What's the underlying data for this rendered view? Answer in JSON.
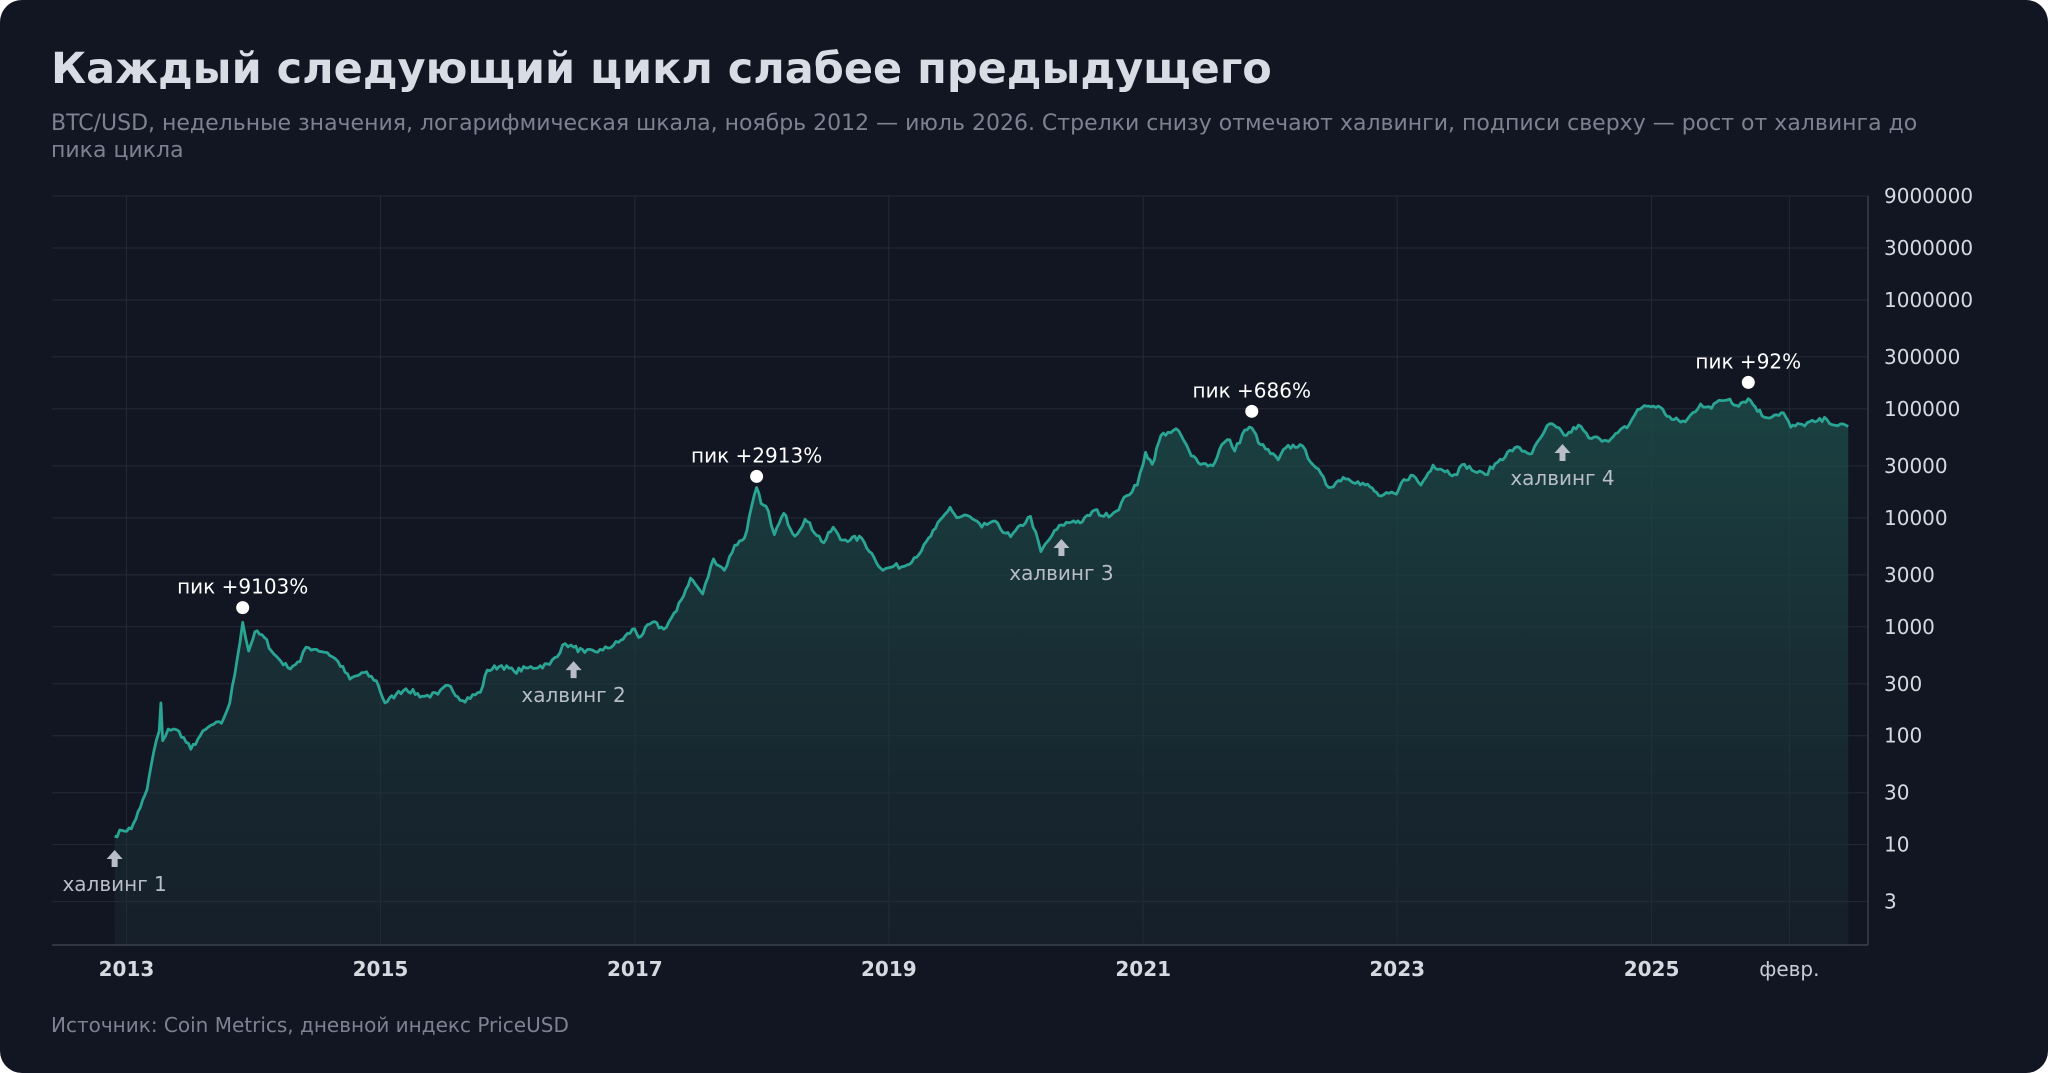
{
  "title": "Каждый следующий цикл слабее предыдущего",
  "subtitle": "BTC/USD, недельные значения, логарифмическая шкала, ноябрь 2012 — июль 2026. Стрелки снизу отмечают халвинги, подписи сверху — рост от халвинга до пика цикла",
  "source": "Источник: Coin Metrics, дневной индекс PriceUSD",
  "colors": {
    "background": "#121622",
    "line": "#2aa493",
    "area": "#1d4a47",
    "grid": "#232a37"
  },
  "chart_data": {
    "type": "area",
    "scale_y": "log",
    "ylim": [
      1.2,
      9000000
    ],
    "xlim": [
      "2012-06-01",
      "2026-09-15"
    ],
    "grid": true,
    "y_ticks": [
      3,
      10,
      30,
      100,
      300,
      1000,
      3000,
      10000,
      30000,
      100000,
      300000,
      1000000,
      3000000,
      9000000
    ],
    "y_tick_labels": [
      "3",
      "10",
      "30",
      "100",
      "300",
      "1000",
      "3000",
      "10000",
      "30000",
      "100000",
      "300000",
      "1000000",
      "3000000",
      "9000000"
    ],
    "x_ticks": [
      {
        "date": "2013-01-01",
        "label": "2013"
      },
      {
        "date": "2015-01-01",
        "label": "2015"
      },
      {
        "date": "2017-01-01",
        "label": "2017"
      },
      {
        "date": "2019-01-01",
        "label": "2019"
      },
      {
        "date": "2021-01-01",
        "label": "2021"
      },
      {
        "date": "2023-01-01",
        "label": "2023"
      },
      {
        "date": "2025-01-01",
        "label": "2025"
      },
      {
        "date": "2026-02-01",
        "label": "февр."
      }
    ],
    "series": [
      {
        "points": [
          [
            "2012-11-28",
            12
          ],
          [
            "2012-12-20",
            13.5
          ],
          [
            "2013-01-15",
            14
          ],
          [
            "2013-02-10",
            22
          ],
          [
            "2013-03-01",
            32
          ],
          [
            "2013-03-20",
            70
          ],
          [
            "2013-04-05",
            110
          ],
          [
            "2013-04-10",
            200
          ],
          [
            "2013-04-15",
            90
          ],
          [
            "2013-05-01",
            115
          ],
          [
            "2013-06-01",
            110
          ],
          [
            "2013-07-05",
            75
          ],
          [
            "2013-08-01",
            100
          ],
          [
            "2013-09-01",
            125
          ],
          [
            "2013-10-01",
            130
          ],
          [
            "2013-10-25",
            200
          ],
          [
            "2013-11-15",
            500
          ],
          [
            "2013-12-01",
            1100
          ],
          [
            "2013-12-18",
            600
          ],
          [
            "2014-01-05",
            900
          ],
          [
            "2014-02-01",
            800
          ],
          [
            "2014-03-01",
            560
          ],
          [
            "2014-04-10",
            420
          ],
          [
            "2014-05-15",
            480
          ],
          [
            "2014-06-01",
            650
          ],
          [
            "2014-07-01",
            620
          ],
          [
            "2014-08-01",
            580
          ],
          [
            "2014-09-01",
            480
          ],
          [
            "2014-10-05",
            330
          ],
          [
            "2014-11-15",
            380
          ],
          [
            "2014-12-20",
            320
          ],
          [
            "2015-01-14",
            200
          ],
          [
            "2015-02-15",
            240
          ],
          [
            "2015-03-15",
            270
          ],
          [
            "2015-05-01",
            230
          ],
          [
            "2015-06-15",
            240
          ],
          [
            "2015-07-15",
            290
          ],
          [
            "2015-08-25",
            210
          ],
          [
            "2015-10-15",
            250
          ],
          [
            "2015-11-04",
            400
          ],
          [
            "2015-12-15",
            440
          ],
          [
            "2016-01-20",
            390
          ],
          [
            "2016-03-01",
            420
          ],
          [
            "2016-05-01",
            450
          ],
          [
            "2016-06-15",
            700
          ],
          [
            "2016-07-09",
            650
          ],
          [
            "2016-08-10",
            580
          ],
          [
            "2016-10-01",
            610
          ],
          [
            "2016-11-15",
            720
          ],
          [
            "2016-12-31",
            960
          ],
          [
            "2017-01-12",
            800
          ],
          [
            "2017-02-20",
            1100
          ],
          [
            "2017-03-25",
            950
          ],
          [
            "2017-05-01",
            1400
          ],
          [
            "2017-06-10",
            2800
          ],
          [
            "2017-07-15",
            2000
          ],
          [
            "2017-08-15",
            4200
          ],
          [
            "2017-09-15",
            3300
          ],
          [
            "2017-10-15",
            5600
          ],
          [
            "2017-11-12",
            6500
          ],
          [
            "2017-12-17",
            19000
          ],
          [
            "2017-12-30",
            13500
          ],
          [
            "2018-01-20",
            11500
          ],
          [
            "2018-02-06",
            7000
          ],
          [
            "2018-03-05",
            11000
          ],
          [
            "2018-04-06",
            6800
          ],
          [
            "2018-05-05",
            9700
          ],
          [
            "2018-06-28",
            5900
          ],
          [
            "2018-07-25",
            8200
          ],
          [
            "2018-08-15",
            6300
          ],
          [
            "2018-10-15",
            6500
          ],
          [
            "2018-11-20",
            4300
          ],
          [
            "2018-12-15",
            3300
          ],
          [
            "2019-01-15",
            3600
          ],
          [
            "2019-02-15",
            3600
          ],
          [
            "2019-04-05",
            5000
          ],
          [
            "2019-05-15",
            8000
          ],
          [
            "2019-06-26",
            12500
          ],
          [
            "2019-07-15",
            10000
          ],
          [
            "2019-08-15",
            10500
          ],
          [
            "2019-09-25",
            8200
          ],
          [
            "2019-10-26",
            9300
          ],
          [
            "2019-12-17",
            6700
          ],
          [
            "2020-02-12",
            10300
          ],
          [
            "2020-03-13",
            4900
          ],
          [
            "2020-04-15",
            7000
          ],
          [
            "2020-05-11",
            8600
          ],
          [
            "2020-06-15",
            9400
          ],
          [
            "2020-07-10",
            9200
          ],
          [
            "2020-08-15",
            11800
          ],
          [
            "2020-09-10",
            10300
          ],
          [
            "2020-10-15",
            11500
          ],
          [
            "2020-11-15",
            16000
          ],
          [
            "2020-12-15",
            20000
          ],
          [
            "2021-01-08",
            40000
          ],
          [
            "2021-01-27",
            31000
          ],
          [
            "2021-02-21",
            57000
          ],
          [
            "2021-03-13",
            61000
          ],
          [
            "2021-04-13",
            63000
          ],
          [
            "2021-05-19",
            37000
          ],
          [
            "2021-06-22",
            31500
          ],
          [
            "2021-07-20",
            30000
          ],
          [
            "2021-08-15",
            47000
          ],
          [
            "2021-09-07",
            52000
          ],
          [
            "2021-09-21",
            41000
          ],
          [
            "2021-10-20",
            64000
          ],
          [
            "2021-11-09",
            67000
          ],
          [
            "2021-12-04",
            47000
          ],
          [
            "2022-01-24",
            34000
          ],
          [
            "2022-02-15",
            44000
          ],
          [
            "2022-03-28",
            47000
          ],
          [
            "2022-05-12",
            29000
          ],
          [
            "2022-06-18",
            19000
          ],
          [
            "2022-07-30",
            23500
          ],
          [
            "2022-09-10",
            21500
          ],
          [
            "2022-10-15",
            19200
          ],
          [
            "2022-11-09",
            16000
          ],
          [
            "2022-12-30",
            16500
          ],
          [
            "2023-01-20",
            22500
          ],
          [
            "2023-02-16",
            24500
          ],
          [
            "2023-03-10",
            20000
          ],
          [
            "2023-04-14",
            30500
          ],
          [
            "2023-06-15",
            25000
          ],
          [
            "2023-07-13",
            31000
          ],
          [
            "2023-08-18",
            26000
          ],
          [
            "2023-09-11",
            25000
          ],
          [
            "2023-10-24",
            34500
          ],
          [
            "2023-12-05",
            44000
          ],
          [
            "2024-01-23",
            39000
          ],
          [
            "2024-02-28",
            62000
          ],
          [
            "2024-03-14",
            73000
          ],
          [
            "2024-05-01",
            57000
          ],
          [
            "2024-06-05",
            71000
          ],
          [
            "2024-07-05",
            54000
          ],
          [
            "2024-08-05",
            53000
          ],
          [
            "2024-09-06",
            53000
          ],
          [
            "2024-10-29",
            72000
          ],
          [
            "2024-11-22",
            99000
          ],
          [
            "2024-12-17",
            106000
          ],
          [
            "2025-01-20",
            106000
          ],
          [
            "2025-02-28",
            80000
          ],
          [
            "2025-04-08",
            76000
          ],
          [
            "2025-05-22",
            111000
          ],
          [
            "2025-06-22",
            101000
          ],
          [
            "2025-07-14",
            120000
          ],
          [
            "2025-08-14",
            123000
          ],
          [
            "2025-09-01",
            108000
          ],
          [
            "2025-10-06",
            124000
          ],
          [
            "2025-11-21",
            84000
          ],
          [
            "2025-12-20",
            88000
          ],
          [
            "2026-01-15",
            92000
          ],
          [
            "2026-02-05",
            68000
          ],
          [
            "2026-03-10",
            72000
          ],
          [
            "2026-04-15",
            76000
          ],
          [
            "2026-05-20",
            80000
          ],
          [
            "2026-06-20",
            70000
          ],
          [
            "2026-07-20",
            69000
          ]
        ]
      }
    ],
    "peaks": [
      {
        "date": "2013-12-01",
        "value": 1500,
        "label": "пик +9103%"
      },
      {
        "date": "2017-12-17",
        "value": 24000,
        "label": "пик +2913%"
      },
      {
        "date": "2021-11-09",
        "value": 95000,
        "label": "пик +686%"
      },
      {
        "date": "2025-10-06",
        "value": 175000,
        "label": "пик +92%"
      }
    ],
    "halvings": [
      {
        "date": "2012-11-28",
        "value": 12,
        "label": "халвинг 1"
      },
      {
        "date": "2016-07-09",
        "value": 650,
        "label": "халвинг 2"
      },
      {
        "date": "2020-05-11",
        "value": 8600,
        "label": "халвинг 3"
      },
      {
        "date": "2024-04-20",
        "value": 64000,
        "label": "халвинг 4"
      }
    ]
  }
}
